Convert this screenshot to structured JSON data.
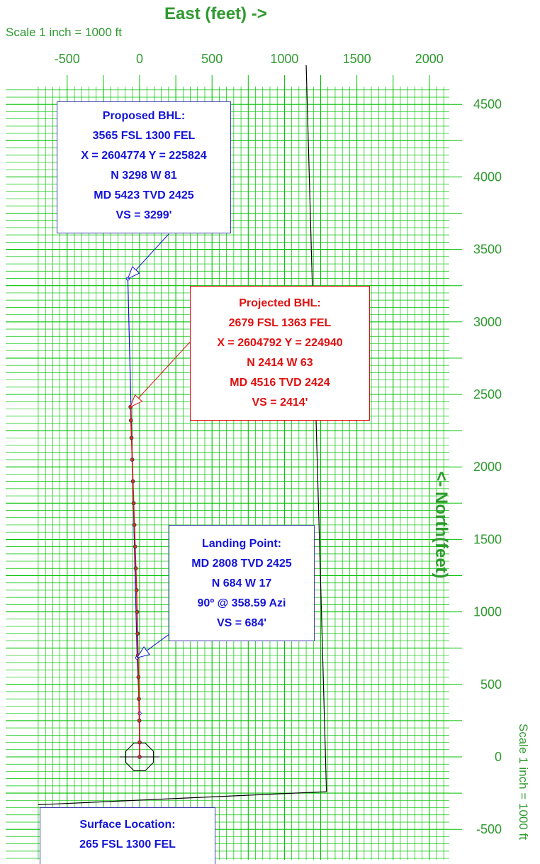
{
  "header": {
    "title": "East (feet) ->",
    "scale_note": "Scale 1 inch = 1000 ft"
  },
  "side": {
    "title": "<- North(feet)",
    "scale_note": "Scale 1 inch = 1000 ft"
  },
  "chart_data": {
    "type": "line",
    "xlabel": "East (feet) ->",
    "ylabel": "<- North(feet)",
    "xlim": [
      -700,
      2400
    ],
    "ylim": [
      -750,
      4750
    ],
    "x_ticks": [
      "-500",
      "0",
      "500",
      "1000",
      "1500",
      "2000"
    ],
    "y_ticks": [
      "4500",
      "4000",
      "3500",
      "3000",
      "2500",
      "2000",
      "1500",
      "1000",
      "500",
      "0",
      "-500"
    ],
    "grid": true,
    "colors": {
      "grid": "#00c000",
      "labels": "#2f9a2f",
      "proposed": "#1414d8",
      "actual": "#e01010",
      "lease": "#000000"
    },
    "series": [
      {
        "name": "Proposed",
        "x": [
          0,
          0,
          -17,
          -81
        ],
        "y": [
          0,
          300,
          684,
          3298
        ]
      },
      {
        "name": "Actual",
        "x": [
          0,
          0,
          -2,
          -5,
          -8,
          -11,
          -14,
          -17,
          -21,
          -26,
          -31,
          -36,
          -41,
          -46,
          -51,
          -56,
          -60,
          -63
        ],
        "y": [
          0,
          100,
          250,
          400,
          550,
          700,
          850,
          1000,
          1150,
          1300,
          1450,
          1600,
          1750,
          1900,
          2050,
          2200,
          2320,
          2414
        ]
      }
    ],
    "lease_lines": [
      {
        "x": [
          1150,
          1290
        ],
        "y": [
          4770,
          -240
        ]
      },
      {
        "x": [
          -700,
          1290
        ],
        "y": [
          -330,
          -240
        ]
      }
    ]
  },
  "annotations": {
    "proposed": {
      "lines": [
        "Proposed BHL:",
        "3565 FSL  1300 FEL",
        "X = 2604774  Y = 225824",
        "N 3298  W 81",
        "MD 5423  TVD 2425",
        "VS = 3299'"
      ]
    },
    "projected": {
      "lines": [
        "Projected BHL:",
        "2679 FSL  1363 FEL",
        "X = 2604792  Y  = 224940",
        "N 2414  W 63",
        "MD 4516  TVD 2424",
        "VS = 2414'"
      ]
    },
    "landing": {
      "lines": [
        "Landing Point:",
        "MD 2808  TVD 2425",
        "N 684  W 17",
        "90º @ 358.59 Azi",
        "VS = 684'"
      ]
    },
    "surface": {
      "lines": [
        "Surface Location:",
        "265 FSL  1300 FEL"
      ]
    }
  }
}
